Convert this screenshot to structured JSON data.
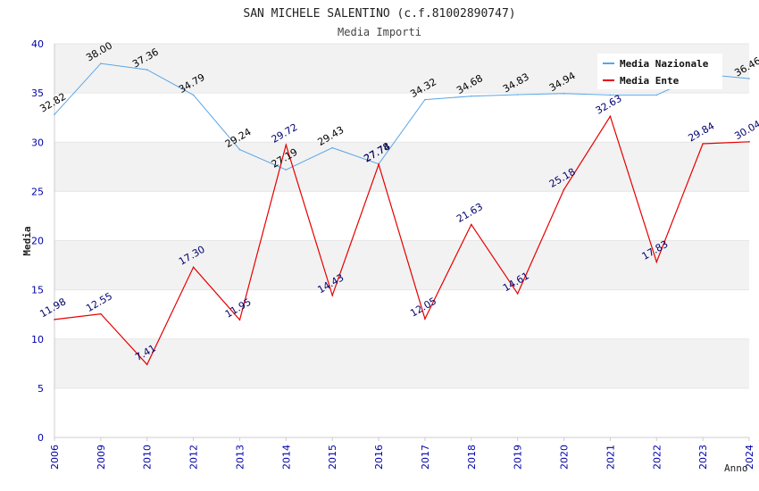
{
  "chart_data": {
    "type": "line",
    "title": "SAN MICHELE SALENTINO (c.f.81002890747)",
    "subtitle": "Media Importi",
    "xlabel": "Anno",
    "ylabel": "Media",
    "ylim": [
      0,
      40
    ],
    "yticks": [
      0,
      5,
      10,
      15,
      20,
      25,
      30,
      35,
      40
    ],
    "legend_position": "top-right",
    "categories": [
      "2006",
      "2009",
      "2010",
      "2012",
      "2013",
      "2014",
      "2015",
      "2016",
      "2017",
      "2018",
      "2019",
      "2020",
      "2021",
      "2022",
      "2023",
      "2024"
    ],
    "series": [
      {
        "name": "Media Nazionale",
        "color": "#5aa5e6",
        "label_color": "#000000",
        "values": [
          32.82,
          38.0,
          37.36,
          34.79,
          29.24,
          27.19,
          29.43,
          27.78,
          34.32,
          34.68,
          34.83,
          34.94,
          34.79,
          34.79,
          36.91,
          36.46
        ],
        "labels": [
          "32.82",
          "38.00",
          "37.36",
          "34.79",
          "29.24",
          "27.19",
          "29.43",
          "27.78",
          "34.32",
          "34.68",
          "34.83",
          "34.94",
          "",
          "",
          "",
          "36.46"
        ]
      },
      {
        "name": "Media Ente",
        "color": "#e60000",
        "label_color": "#00006e",
        "values": [
          11.98,
          12.55,
          7.41,
          17.3,
          11.95,
          29.72,
          14.43,
          27.74,
          12.05,
          21.63,
          14.61,
          25.18,
          32.63,
          17.83,
          29.84,
          30.04
        ],
        "labels": [
          "11.98",
          "12.55",
          "7.41",
          "17.30",
          "11.95",
          "29.72",
          "14.43",
          "27.74",
          "12.05",
          "21.63",
          "14.61",
          "25.18",
          "32.63",
          "17.83",
          "29.84",
          "30.04"
        ]
      }
    ],
    "colors": {
      "band_gray": "#f2f2f2",
      "axis": "#cccccc",
      "tick_text": "#0000aa",
      "title_text": "#222222"
    }
  }
}
